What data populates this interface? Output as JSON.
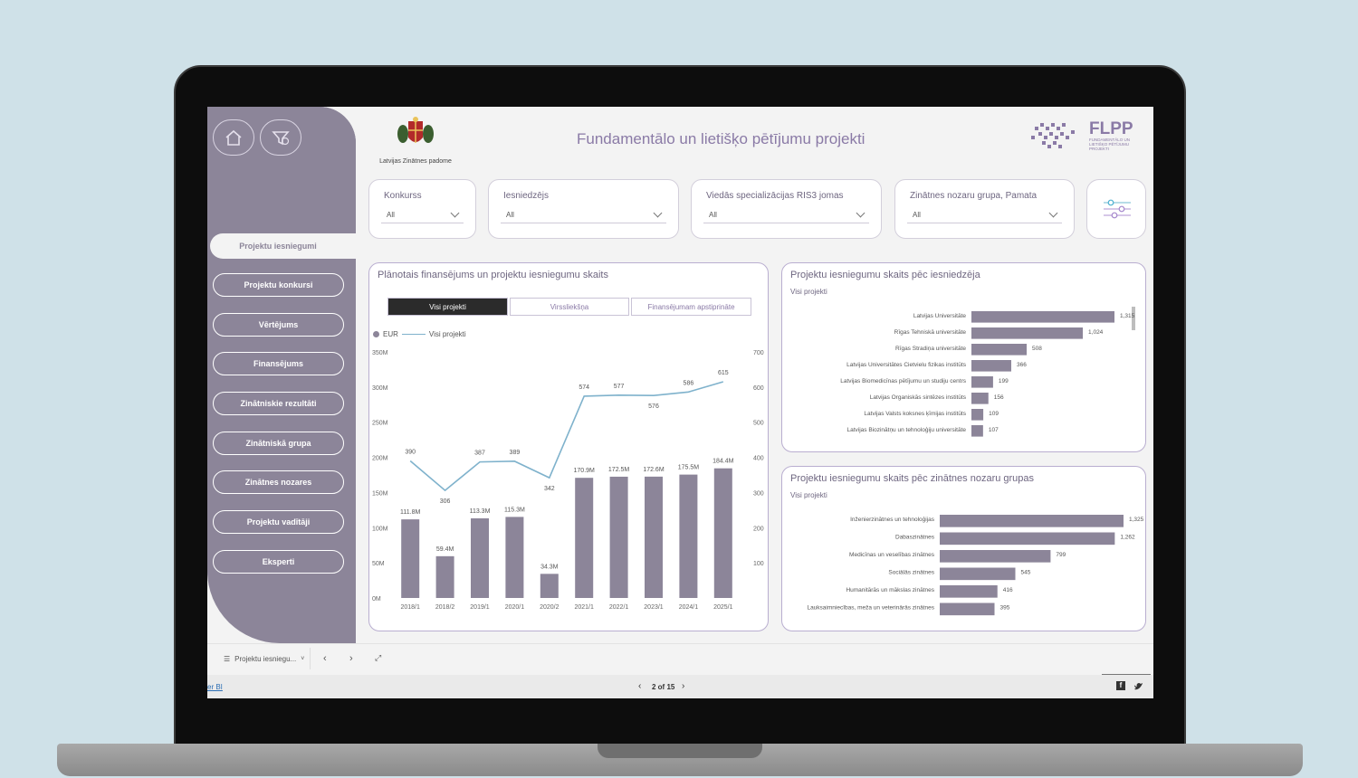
{
  "header": {
    "title": "Fundamentālo un lietišķo pētījumu projekti",
    "org_caption": "Latvijas Zinātnes padome",
    "brand": "FLPP",
    "brand_sub": "FUNDAMENTĀLO UN LIETIŠĶO PĒTĪJUMU PROJEKTI"
  },
  "sidebar": {
    "active": "Projektu iesniegumi",
    "items": [
      {
        "label": "Projektu konkursi"
      },
      {
        "label": "Vērtējums"
      },
      {
        "label": "Finansējums"
      },
      {
        "label": "Zinātniskie rezultāti"
      },
      {
        "label": "Zinātniskā grupa"
      },
      {
        "label": "Zinātnes nozares"
      },
      {
        "label": "Projektu vadītāji"
      },
      {
        "label": "Eksperti"
      }
    ]
  },
  "filters": [
    {
      "label": "Konkurss",
      "value": "All"
    },
    {
      "label": "Iesniedzējs",
      "value": "All"
    },
    {
      "label": "Viedās specializācijas RIS3 jomas",
      "value": "All"
    },
    {
      "label": "Zinātnes nozaru grupa, Pamata",
      "value": "All"
    }
  ],
  "combo_chart": {
    "title": "Plānotais finansējums un projektu iesniegumu skaits",
    "segments": [
      "Visi projekti",
      "Virssliekšņa",
      "Finansējumam apstiprināte"
    ],
    "legend": {
      "bar": "EUR",
      "line": "Visi projekti"
    },
    "left_ticks": [
      "350M",
      "300M",
      "250M",
      "200M",
      "150M",
      "100M",
      "50M",
      "0M"
    ],
    "right_ticks": [
      "700",
      "600",
      "500",
      "400",
      "300",
      "200",
      "100"
    ]
  },
  "chart_data": [
    {
      "type": "bar",
      "title": "Plānotais finansējums un projektu iesniegumu skaits",
      "categories": [
        "2018/1",
        "2018/2",
        "2019/1",
        "2020/1",
        "2020/2",
        "2021/1",
        "2022/1",
        "2023/1",
        "2024/1",
        "2025/1"
      ],
      "series": [
        {
          "name": "EUR",
          "values": [
            111.8,
            59.4,
            113.3,
            115.3,
            34.3,
            170.9,
            172.5,
            172.6,
            175.5,
            184.4
          ],
          "labels": [
            "111.8M",
            "59.4M",
            "113.3M",
            "115.3M",
            "34.3M",
            "170.9M",
            "172.5M",
            "172.6M",
            "175.5M",
            "184.4M"
          ]
        },
        {
          "name": "Visi projekti",
          "type": "line",
          "values": [
            390,
            306,
            387,
            389,
            342,
            574,
            577,
            576,
            586,
            615
          ]
        }
      ],
      "ylim": [
        0,
        350
      ],
      "y2lim": [
        0,
        700
      ]
    },
    {
      "type": "bar",
      "orientation": "horizontal",
      "title": "Projektu iesniegumu skaits pēc iesniedzēja",
      "subtitle": "Visi projekti",
      "categories": [
        "Latvijas Universitāte",
        "Rīgas Tehniskā universitāte",
        "Rīgas Stradiņa universitāte",
        "Latvijas Universitātes Cietvielu fizikas institūts",
        "Latvijas Biomedicīnas pētījumu un studiju centrs",
        "Latvijas Organiskās sintēzes institūts",
        "Latvijas Valsts koksnes ķīmijas institūts",
        "Latvijas Biozinātņu un tehnoloģiju universitāte"
      ],
      "values": [
        1315,
        1024,
        508,
        366,
        199,
        156,
        109,
        107
      ],
      "labels": [
        "1,315",
        "1,024",
        "508",
        "366",
        "199",
        "156",
        "109",
        "107"
      ]
    },
    {
      "type": "bar",
      "orientation": "horizontal",
      "title": "Projektu iesniegumu skaits pēc zinātnes nozaru grupas",
      "subtitle": "Visi projekti",
      "categories": [
        "Inženierzinātnes un tehnoloģijas",
        "Dabaszinātnes",
        "Medicīnas un veselības zinātnes",
        "Sociālās zinātnes",
        "Humanitārās un mākslas zinātnes",
        "Lauksaimniecības, meža un veterinārās zinātnes"
      ],
      "values": [
        1325,
        1262,
        799,
        545,
        416,
        395
      ],
      "labels": [
        "1,325",
        "1,262",
        "799",
        "545",
        "416",
        "395"
      ]
    }
  ],
  "footer": {
    "tab_label": "Projektu iesniegu...",
    "pager": "2 of 15",
    "powerbi_link": "er BI"
  },
  "colors": {
    "bar": "#8c8599",
    "line": "#7fb2cc",
    "accent": "#8a7aa6",
    "sidebar": "#8c8599"
  }
}
